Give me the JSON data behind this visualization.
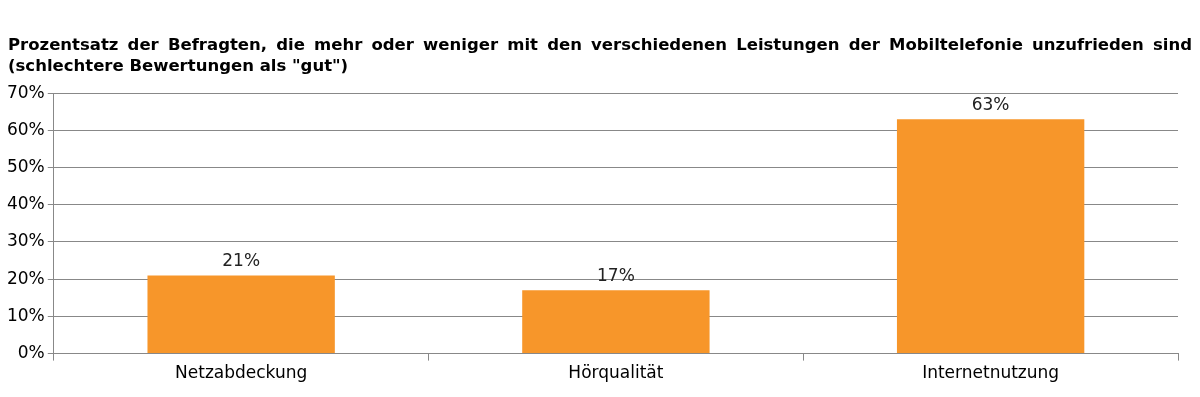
{
  "chart_data": {
    "type": "bar",
    "title": "Prozentsatz der Befragten, die mehr oder weniger mit den verschiedenen Leistungen der Mobiltelefonie unzufrieden sind (schlechtere Bewertungen als \"gut\")",
    "categories": [
      "Netzabdeckung",
      "Hörqualität",
      "Internetnutzung"
    ],
    "values": [
      21,
      17,
      63
    ],
    "value_labels": [
      "21%",
      "17%",
      "63%"
    ],
    "color": "#f7962a",
    "ylim": [
      0,
      70
    ],
    "yticks": [
      {
        "value": 0,
        "label": "0%"
      },
      {
        "value": 10,
        "label": "10%"
      },
      {
        "value": 20,
        "label": "20%"
      },
      {
        "value": 30,
        "label": "30%"
      },
      {
        "value": 40,
        "label": "40%"
      },
      {
        "value": 50,
        "label": "50%"
      },
      {
        "value": 60,
        "label": "60%"
      },
      {
        "value": 70,
        "label": "70%"
      }
    ],
    "grid": "y",
    "legend": false
  }
}
